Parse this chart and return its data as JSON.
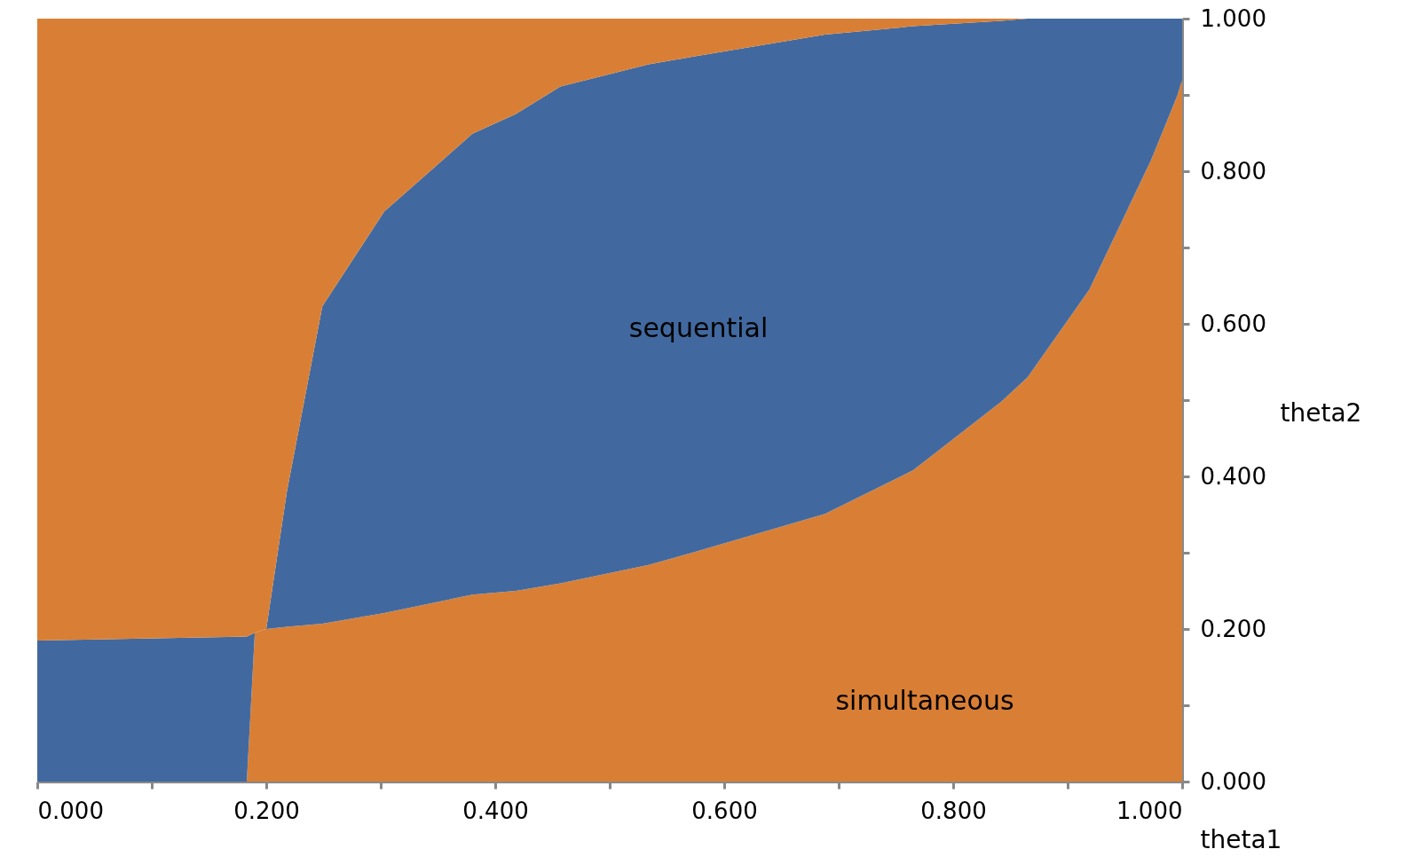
{
  "chart_data": {
    "type": "area",
    "stacked": true,
    "xlabel": "theta1",
    "ylabel": "theta2",
    "x": [
      0,
      0.183,
      0.19,
      0.2,
      0.218,
      0.249,
      0.303,
      0.38,
      0.418,
      0.457,
      0.534,
      0.572,
      0.688,
      0.765,
      0.842,
      0.865,
      0.919,
      0.973,
      0.996,
      1.0
    ],
    "series": [
      {
        "color": "#d97f35",
        "values": [
          0,
          0,
          0.195,
          0.2,
          0.203,
          0.207,
          0.221,
          0.245,
          0.25,
          0.26,
          0.284,
          0.3,
          0.351,
          0.408,
          0.498,
          0.53,
          0.645,
          0.815,
          0.9,
          0.92
        ]
      },
      {
        "color": "#41699f",
        "values": [
          0.185,
          0.19,
          0,
          0,
          0.177,
          0.416,
          0.526,
          0.604,
          0.625,
          0.651,
          0.656,
          0.65,
          0.628,
          0.582,
          0.499,
          0.47,
          0.355,
          0.185,
          0.1,
          0.08
        ]
      },
      {
        "color": "#d97f35",
        "values": [
          0.815,
          0.81,
          0.805,
          0.8,
          0.62,
          0.377,
          0.253,
          0.151,
          0.125,
          0.089,
          0.06,
          0.05,
          0.021,
          0.01,
          0.003,
          0,
          0,
          0,
          0,
          0
        ]
      }
    ],
    "xlim": [
      0,
      1
    ],
    "ylim": [
      0,
      1
    ],
    "xticks": [
      {
        "value": 0,
        "label": "0.000"
      },
      {
        "value": 0.1,
        "label": null
      },
      {
        "value": 0.2,
        "label": "0.200"
      },
      {
        "value": 0.3,
        "label": null
      },
      {
        "value": 0.4,
        "label": "0.400"
      },
      {
        "value": 0.5,
        "label": null
      },
      {
        "value": 0.6,
        "label": "0.600"
      },
      {
        "value": 0.7,
        "label": null
      },
      {
        "value": 0.8,
        "label": "0.800"
      },
      {
        "value": 0.9,
        "label": null
      },
      {
        "value": 1.0,
        "label": "1.000"
      }
    ],
    "yticks": [
      {
        "value": 0,
        "label": "0.000"
      },
      {
        "value": 0.1,
        "label": null
      },
      {
        "value": 0.2,
        "label": "0.200"
      },
      {
        "value": 0.3,
        "label": null
      },
      {
        "value": 0.4,
        "label": "0.400"
      },
      {
        "value": 0.5,
        "label": null
      },
      {
        "value": 0.6,
        "label": "0.600"
      },
      {
        "value": 0.7,
        "label": null
      },
      {
        "value": 0.8,
        "label": "0.800"
      },
      {
        "value": 0.9,
        "label": null
      },
      {
        "value": 1.0,
        "label": "1.000"
      }
    ],
    "annotations": [
      "sequential",
      "simultaneous"
    ],
    "grid": false,
    "legend": false
  }
}
